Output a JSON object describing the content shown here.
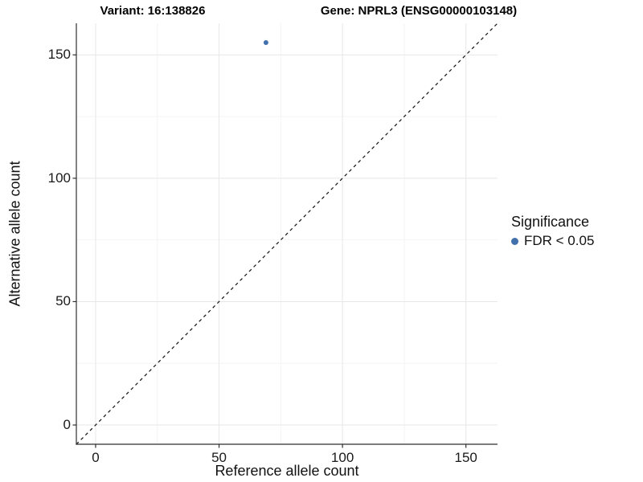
{
  "titles": {
    "variant": "Variant: 16:138826",
    "gene": "Gene: NPRL3 (ENSG00000103148)"
  },
  "x_axis": {
    "label": "Reference allele count"
  },
  "y_axis": {
    "label": "Alternative allele count"
  },
  "legend": {
    "title": "Significance",
    "items": [
      {
        "label": "FDR < 0.05",
        "color": "#4170ac"
      }
    ]
  },
  "colors": {
    "point": "#4170ac",
    "grid_major": "#e7e7e7",
    "grid_minor": "#f4f4f4",
    "axis_line": "#2e2e2e",
    "identity_line": "#111111"
  },
  "chart_data": {
    "type": "scatter",
    "title": "Variant: 16:138826 — Gene: NPRL3 (ENSG00000103148)",
    "xlabel": "Reference allele count",
    "ylabel": "Alternative allele count",
    "xlim": [
      -7.8,
      162.8
    ],
    "ylim": [
      -7.8,
      162.8
    ],
    "x_ticks": [
      0,
      50,
      100,
      150
    ],
    "y_ticks": [
      0,
      50,
      100,
      150
    ],
    "x_minor_ticks": [
      25,
      75,
      125
    ],
    "y_minor_ticks": [
      25,
      75,
      125
    ],
    "equal_aspect": true,
    "grid": true,
    "legend_position": "right",
    "series": [
      {
        "name": "FDR < 0.05",
        "color": "#4170ac",
        "points": [
          {
            "x": 69,
            "y": 155
          }
        ]
      }
    ],
    "reference_line": {
      "type": "identity (y = x)",
      "style": "dashed",
      "color": "#111111"
    }
  }
}
